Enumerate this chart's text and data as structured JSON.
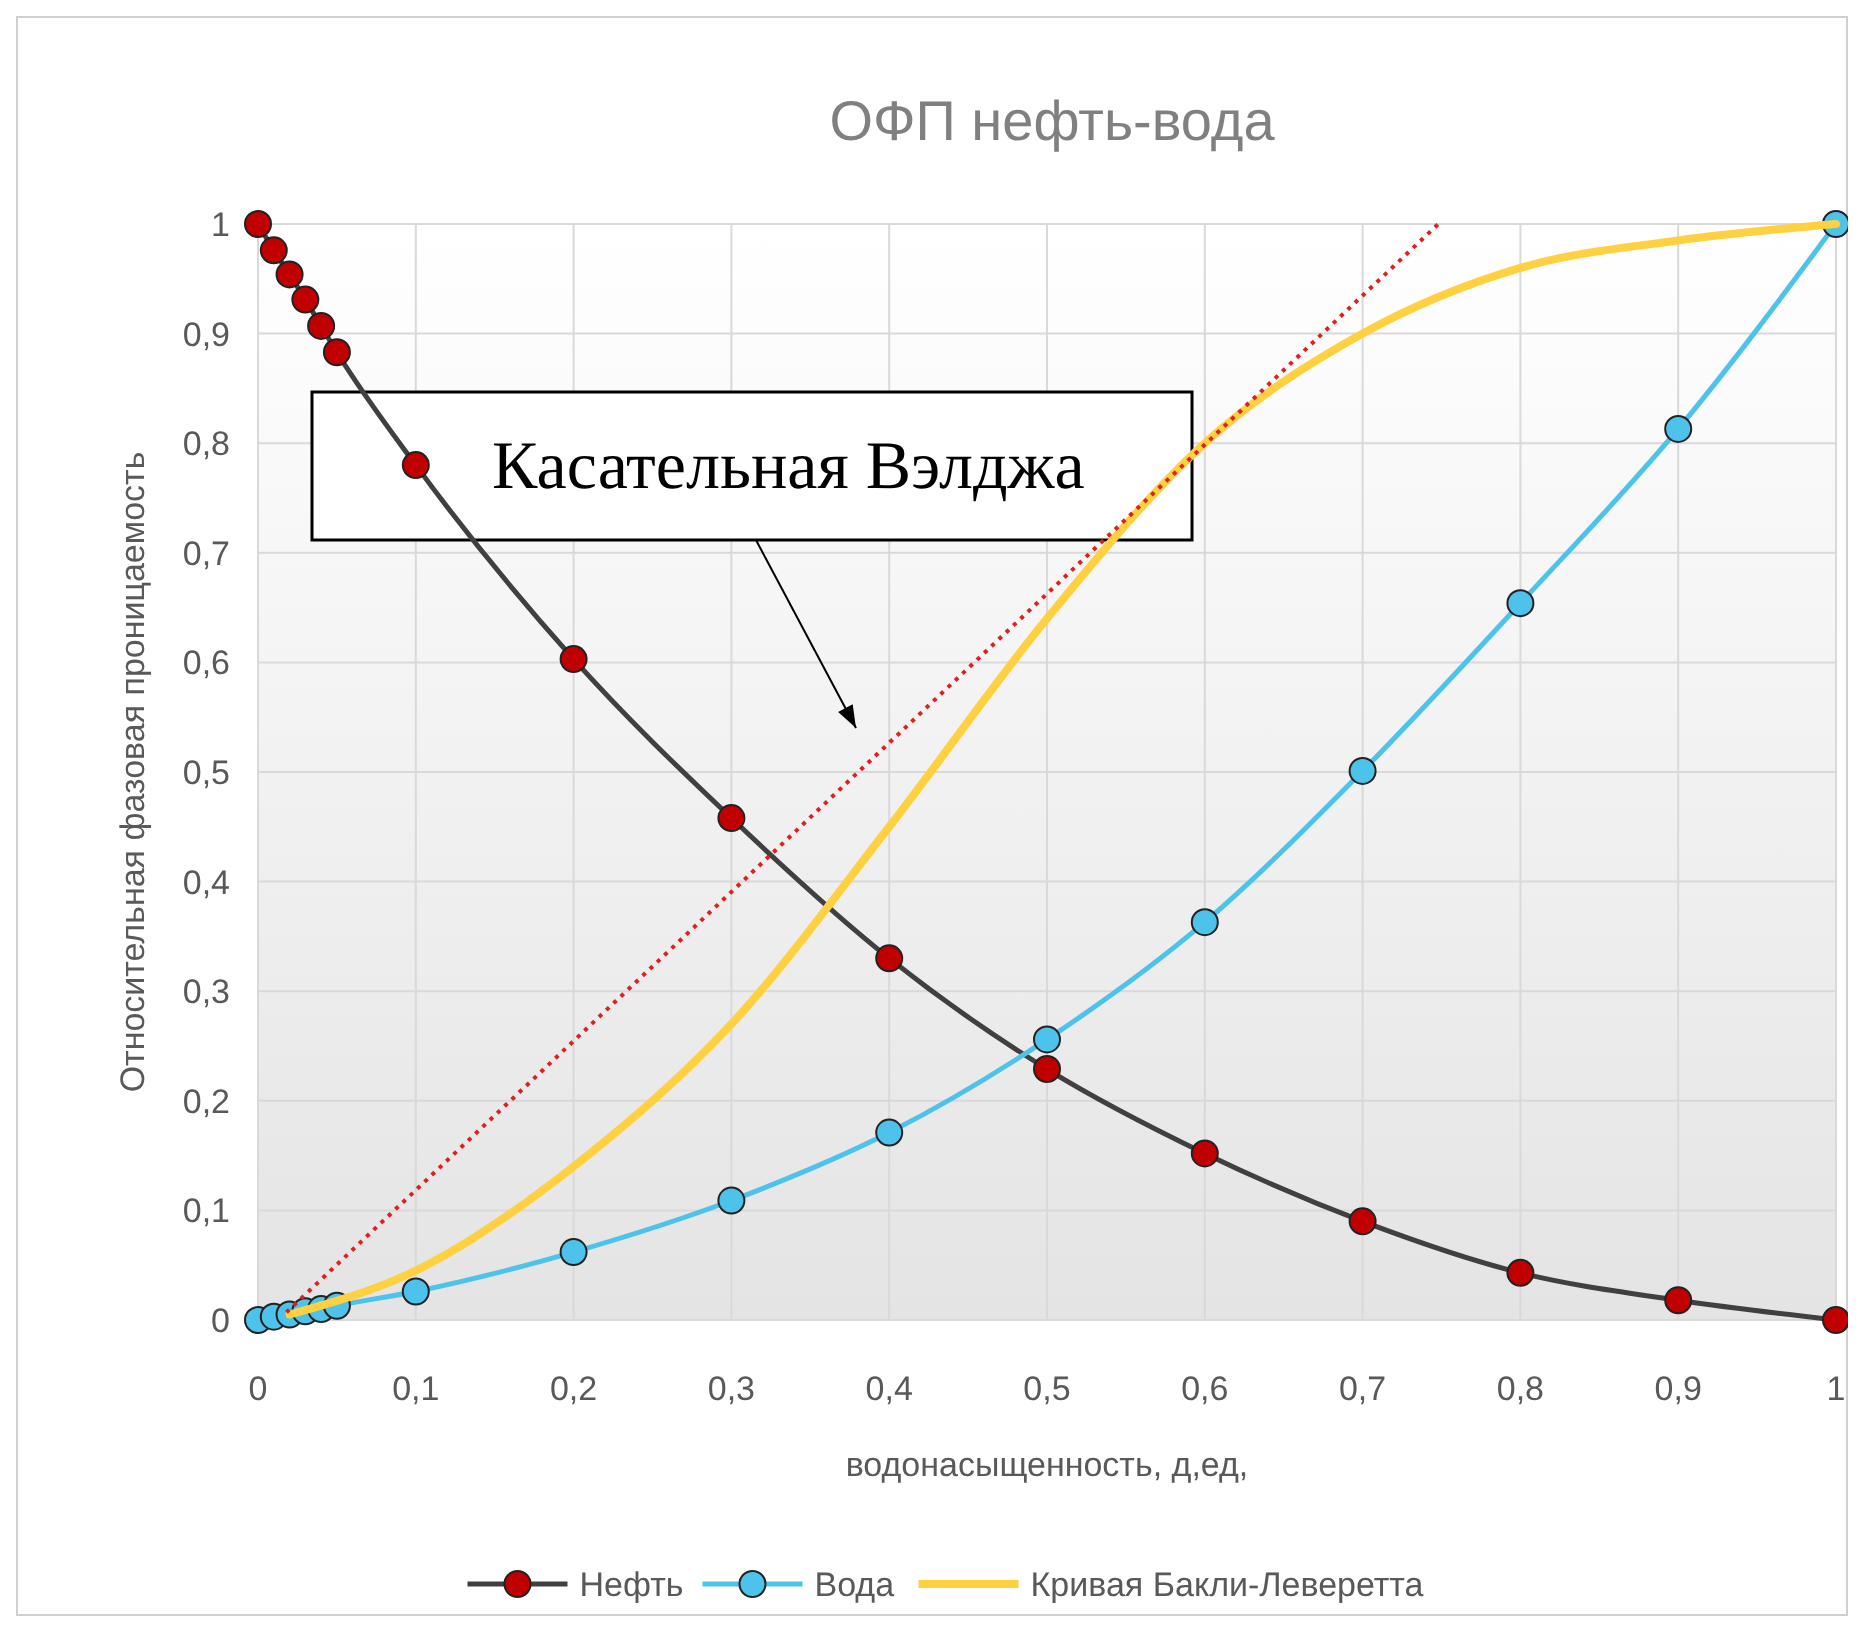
{
  "chart_data": {
    "type": "line",
    "title": "ОФП нефть-вода",
    "xlabel": "водонасыщенность, д,ед,",
    "ylabel": "Относительная фазовая проницаемость",
    "xlim": [
      0,
      1
    ],
    "ylim": [
      0,
      1
    ],
    "xticks": [
      0,
      {
        "value": 0.1,
        "label": "0,1"
      },
      {
        "value": 0.2,
        "label": "0,2"
      },
      {
        "value": 0.3,
        "label": "0,3"
      },
      {
        "value": 0.4,
        "label": "0,4"
      },
      {
        "value": 0.5,
        "label": "0,5"
      },
      {
        "value": 0.6,
        "label": "0,6"
      },
      {
        "value": 0.7,
        "label": "0,7"
      },
      {
        "value": 0.8,
        "label": "0,8"
      },
      {
        "value": 0.9,
        "label": "0,9"
      },
      1
    ],
    "yticks": [
      0,
      {
        "value": 0.1,
        "label": "0,1"
      },
      {
        "value": 0.2,
        "label": "0,2"
      },
      {
        "value": 0.3,
        "label": "0,3"
      },
      {
        "value": 0.4,
        "label": "0,4"
      },
      {
        "value": 0.5,
        "label": "0,5"
      },
      {
        "value": 0.6,
        "label": "0,6"
      },
      {
        "value": 0.7,
        "label": "0,7"
      },
      {
        "value": 0.8,
        "label": "0,8"
      },
      {
        "value": 0.9,
        "label": "0,9"
      },
      1
    ],
    "grid": true,
    "legend": "bottom",
    "series": [
      {
        "name": "Нефть",
        "color": "#404040",
        "marker": "circle",
        "x": [
          0,
          0.01,
          0.02,
          0.03,
          0.04,
          0.05,
          0.1,
          0.2,
          0.3,
          0.4,
          0.5,
          0.6,
          0.7,
          0.8,
          0.9,
          1
        ],
        "values": [
          1,
          0.976,
          0.954,
          0.931,
          0.907,
          0.883,
          0.78,
          0.603,
          0.458,
          0.33,
          0.229,
          0.152,
          0.09,
          0.043,
          0.018,
          0
        ]
      },
      {
        "name": "Вода",
        "color": "#4dc3ec",
        "marker": "circle",
        "x": [
          0,
          0.01,
          0.02,
          0.03,
          0.04,
          0.05,
          0.1,
          0.2,
          0.3,
          0.4,
          0.5,
          0.6,
          0.7,
          0.8,
          0.9,
          1
        ],
        "values": [
          0,
          0.003,
          0.005,
          0.008,
          0.01,
          0.013,
          0.026,
          0.062,
          0.109,
          0.171,
          0.256,
          0.363,
          0.501,
          0.654,
          0.813,
          1
        ]
      },
      {
        "name": "Кривая Бакли-Леверетта",
        "color": "#ffd040",
        "marker": "none",
        "x": [
          0.02,
          0.1,
          0.2,
          0.3,
          0.4,
          0.5,
          0.6,
          0.7,
          0.8,
          0.9,
          1
        ],
        "values": [
          0.005,
          0.045,
          0.14,
          0.27,
          0.45,
          0.64,
          0.8,
          0.9,
          0.96,
          0.985,
          1
        ]
      },
      {
        "color": "#e02020",
        "marker": "none",
        "line_style": "dotted",
        "x": [
          0.018,
          0.748
        ],
        "values": [
          0.007,
          1
        ]
      }
    ],
    "annotations": [
      "Касательная Вэлджа"
    ]
  }
}
